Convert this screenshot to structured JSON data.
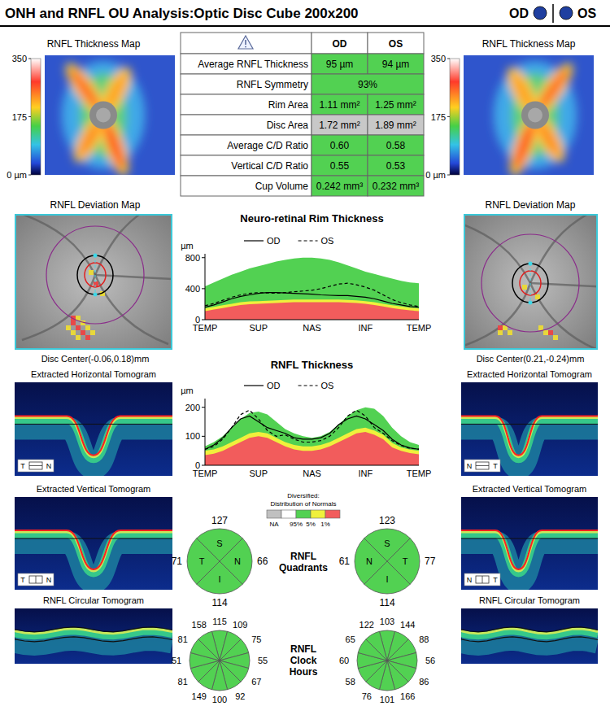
{
  "header": {
    "title": "ONH and RNFL OU Analysis:Optic Disc Cube 200x200",
    "eyes": [
      "OD",
      "OS"
    ],
    "color": "#1f3fa0"
  },
  "thickness_maps": {
    "title": "RNFL Thickness Map",
    "colorbar": {
      "range": [
        0,
        350
      ],
      "ticks": [
        350,
        175,
        {
          "value": 0,
          "label": "0 µm"
        }
      ]
    }
  },
  "table": {
    "columns": [
      "OD",
      "OS"
    ],
    "rows": [
      {
        "label": "Average RNFL Thickness",
        "values": [
          "95 µm",
          "94 µm"
        ],
        "color": "#52d152"
      },
      {
        "label": "RNFL Symmetry",
        "values": [
          "93%"
        ],
        "color": "#52d152"
      },
      {
        "label": "Rim Area",
        "values": [
          "1.11 mm²",
          "1.25 mm²"
        ],
        "color": "#52d152"
      },
      {
        "label": "Disc Area",
        "values": [
          "1.72 mm²",
          "1.89 mm²"
        ],
        "color": "#c8c8c8"
      },
      {
        "label": "Average C/D Ratio",
        "values": [
          "0.60",
          "0.58"
        ],
        "color": "#52d152"
      },
      {
        "label": "Vertical C/D Ratio",
        "values": [
          "0.55",
          "0.53"
        ],
        "color": "#52d152"
      },
      {
        "label": "Cup Volume",
        "values": [
          "0.242 mm³",
          "0.232 mm³"
        ],
        "color": "#52d152"
      }
    ]
  },
  "deviation_maps": {
    "title": "RNFL Deviation Map",
    "captions": [
      "Disc Center(-0.06,0.18)mm",
      "Disc Center(0.21,-0.24)mm"
    ]
  },
  "tomograms": {
    "titles": [
      "Extracted Horizontal Tomogram",
      "Extracted Vertical Tomogram",
      "RNFL Circular Tomogram"
    ],
    "orientation_labels": [
      [
        [
          "T",
          "N"
        ],
        [
          "T",
          "N"
        ]
      ],
      [
        [
          "N",
          "T"
        ],
        [
          "N",
          "T"
        ]
      ]
    ]
  },
  "chart_data": [
    {
      "type": "line",
      "title": "Neuro-retinal Rim Thickness",
      "ylabel": "µm",
      "legend": "top",
      "categories": [
        "TEMP",
        null,
        null,
        null,
        null,
        null,
        "SUP",
        null,
        null,
        null,
        null,
        null,
        "NAS",
        null,
        null,
        null,
        null,
        null,
        "INF",
        null,
        null,
        null,
        null,
        null,
        "TEMP"
      ],
      "ylim": [
        0,
        850
      ],
      "yticks": [
        0,
        400,
        800
      ],
      "series": [
        {
          "type": "area",
          "color": "#52d152",
          "values": [
            430,
            480,
            530,
            580,
            620,
            660,
            690,
            720,
            750,
            770,
            790,
            800,
            800,
            790,
            770,
            740,
            700,
            660,
            620,
            590,
            560,
            530,
            500,
            480,
            470
          ]
        },
        {
          "type": "area",
          "color": "#f0f03c",
          "values": [
            145,
            165,
            185,
            205,
            225,
            235,
            240,
            245,
            250,
            255,
            260,
            260,
            260,
            260,
            260,
            260,
            255,
            250,
            240,
            225,
            205,
            185,
            170,
            155,
            145
          ]
        },
        {
          "type": "area",
          "color": "#f25c5c",
          "values": [
            110,
            130,
            150,
            170,
            190,
            200,
            205,
            210,
            215,
            220,
            225,
            225,
            225,
            225,
            225,
            225,
            220,
            215,
            205,
            190,
            170,
            150,
            135,
            120,
            110
          ]
        },
        {
          "name": "OD",
          "color": "#000000",
          "line_style": "solid",
          "values": [
            160,
            190,
            230,
            270,
            300,
            320,
            340,
            350,
            350,
            345,
            340,
            335,
            330,
            320,
            315,
            310,
            310,
            300,
            290,
            270,
            240,
            210,
            190,
            170,
            160
          ]
        },
        {
          "name": "OS",
          "color": "#000000",
          "line_style": "dashed",
          "values": [
            180,
            210,
            250,
            290,
            320,
            340,
            350,
            345,
            340,
            350,
            360,
            370,
            380,
            400,
            430,
            460,
            470,
            450,
            420,
            380,
            320,
            260,
            220,
            190,
            170
          ]
        }
      ]
    },
    {
      "type": "line",
      "title": "RNFL Thickness",
      "ylabel": "µm",
      "legend": "top",
      "categories": [
        "TEMP",
        null,
        null,
        null,
        null,
        null,
        "SUP",
        null,
        null,
        null,
        null,
        null,
        "NAS",
        null,
        null,
        null,
        null,
        null,
        "INF",
        null,
        null,
        null,
        null,
        null,
        "TEMP"
      ],
      "ylim": [
        0,
        230
      ],
      "yticks": [
        0,
        100,
        200
      ],
      "series": [
        {
          "type": "area",
          "color": "#52d152",
          "values": [
            65,
            80,
            100,
            130,
            160,
            180,
            185,
            175,
            150,
            125,
            110,
            100,
            95,
            100,
            115,
            140,
            170,
            190,
            200,
            195,
            170,
            130,
            100,
            80,
            70
          ]
        },
        {
          "type": "area",
          "color": "#f0f03c",
          "values": [
            50,
            55,
            65,
            80,
            95,
            110,
            115,
            110,
            95,
            80,
            70,
            65,
            65,
            70,
            80,
            95,
            110,
            125,
            130,
            120,
            105,
            77,
            62,
            54,
            50
          ]
        },
        {
          "type": "area",
          "color": "#f25c5c",
          "values": [
            35,
            40,
            50,
            65,
            80,
            95,
            100,
            95,
            80,
            65,
            55,
            50,
            50,
            55,
            65,
            80,
            95,
            110,
            115,
            105,
            90,
            62,
            50,
            42,
            38
          ]
        },
        {
          "name": "OD",
          "color": "#000000",
          "line_style": "solid",
          "values": [
            55,
            70,
            95,
            130,
            160,
            170,
            150,
            130,
            120,
            110,
            95,
            90,
            90,
            95,
            110,
            140,
            160,
            170,
            160,
            140,
            120,
            90,
            70,
            60,
            55
          ]
        },
        {
          "name": "OS",
          "color": "#000000",
          "line_style": "dashed",
          "values": [
            55,
            65,
            90,
            130,
            175,
            190,
            160,
            120,
            100,
            105,
            90,
            80,
            80,
            85,
            100,
            130,
            170,
            190,
            170,
            130,
            110,
            85,
            68,
            58,
            56
          ]
        }
      ]
    }
  ],
  "distribution_legend": {
    "title": "Diversified:",
    "subtitle": "Distribution of Normals",
    "colors": [
      "#c0c0c0",
      "#ffffff",
      "#52d152",
      "#f0f03c",
      "#f25c5c"
    ],
    "labels": [
      "NA",
      "95%",
      "5%",
      "1%"
    ]
  },
  "quadrants": {
    "title": "RNFL Quadrants",
    "color": "#52d152",
    "panels": [
      {
        "labels": [
          "S",
          "N",
          "I",
          "T"
        ],
        "values": [
          127,
          66,
          114,
          71
        ]
      },
      {
        "labels": [
          "S",
          "T",
          "I",
          "N"
        ],
        "values": [
          123,
          77,
          114,
          61
        ]
      }
    ]
  },
  "clock_hours": {
    "title": "RNFL Clock Hours",
    "color": "#52d152",
    "panels": [
      [
        115,
        109,
        75,
        55,
        67,
        92,
        100,
        149,
        81,
        51,
        81,
        158
      ],
      [
        103,
        144,
        88,
        56,
        86,
        166,
        101,
        76,
        58,
        60,
        65,
        122
      ]
    ]
  }
}
